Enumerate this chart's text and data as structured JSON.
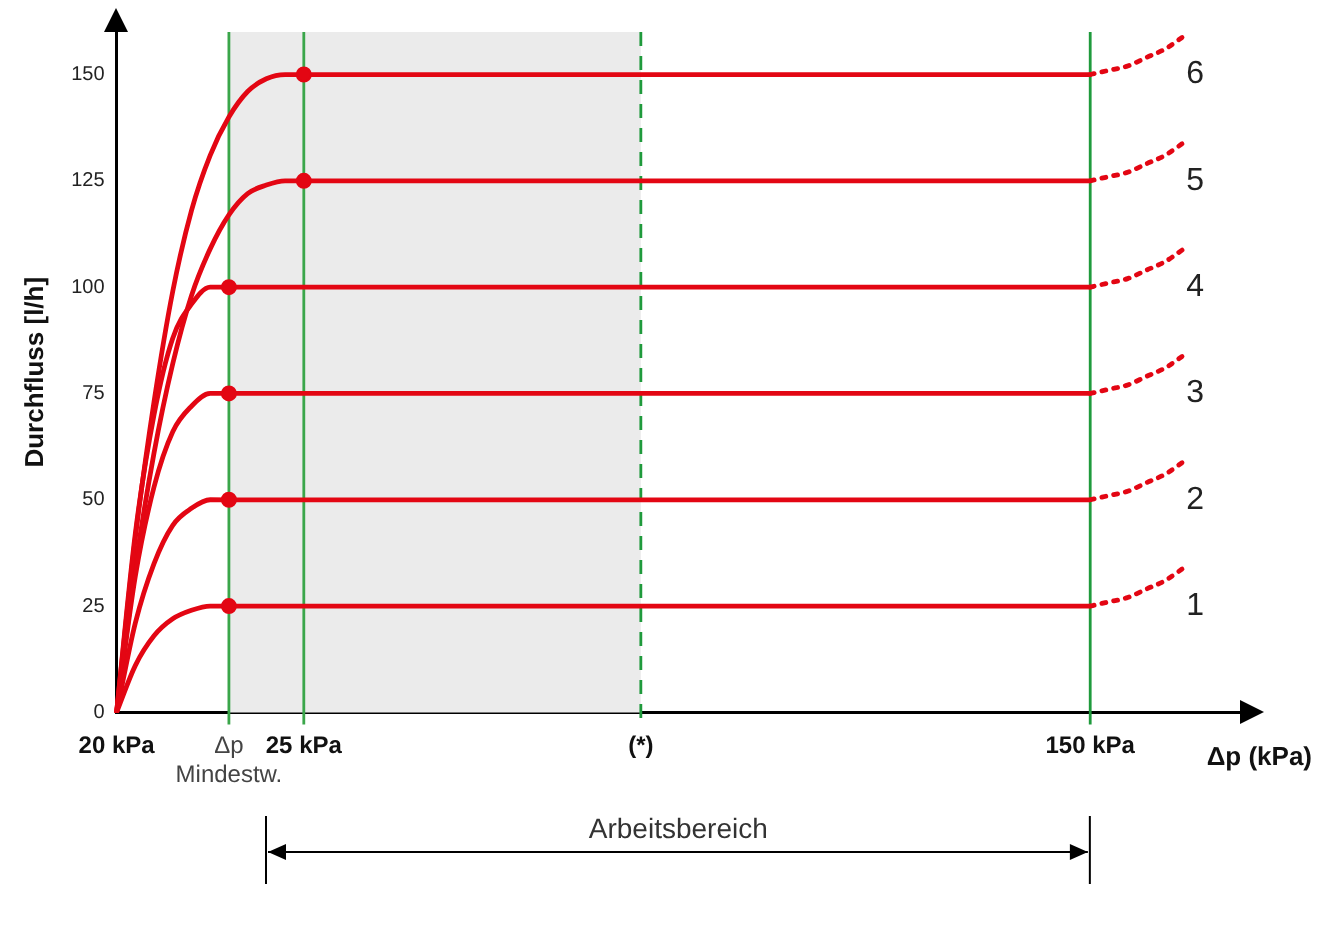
{
  "chart_data": {
    "type": "line",
    "ylabel": "Durchfluss [l/h]",
    "xlabel": "Δp (kPa)",
    "categories": [
      "20 kPa",
      null,
      null,
      null,
      null,
      null,
      "Δp\nMindestw.",
      null,
      null,
      null,
      "25 kPa",
      null,
      null,
      null,
      null,
      null,
      null,
      null,
      null,
      null,
      null,
      null,
      null,
      null,
      null,
      null,
      null,
      null,
      "(*)",
      null,
      null,
      null,
      null,
      null,
      null,
      null,
      null,
      null,
      null,
      null,
      null,
      null,
      null,
      null,
      null,
      null,
      null,
      null,
      null,
      null,
      null,
      null,
      "150 kPa",
      null,
      null,
      null,
      null,
      null,
      null,
      null,
      null
    ],
    "ylim": [
      0,
      160
    ],
    "yticks": [
      0,
      25,
      50,
      75,
      100,
      125,
      150
    ],
    "legend": false,
    "marker": "none",
    "line_style": "solid",
    "series": [
      {
        "name": "1",
        "color": "#e30613",
        "values": [
          0,
          11,
          18,
          22,
          24,
          25,
          25,
          25,
          25,
          25,
          25,
          25,
          25,
          25,
          25,
          25,
          25,
          25,
          25,
          25,
          25,
          25,
          25,
          25,
          25,
          25,
          25,
          25,
          25,
          25,
          25,
          25,
          25,
          25,
          25,
          25,
          25,
          25,
          25,
          25,
          25,
          25,
          25,
          25,
          25,
          25,
          25,
          25,
          25,
          25,
          25,
          25,
          25,
          null,
          null,
          null,
          null,
          null,
          null,
          null,
          null
        ]
      },
      {
        "name": "2",
        "color": "#e30613",
        "values": [
          0,
          21,
          35,
          44,
          48,
          50,
          50,
          50,
          50,
          50,
          50,
          50,
          50,
          50,
          50,
          50,
          50,
          50,
          50,
          50,
          50,
          50,
          50,
          50,
          50,
          50,
          50,
          50,
          50,
          50,
          50,
          50,
          50,
          50,
          50,
          50,
          50,
          50,
          50,
          50,
          50,
          50,
          50,
          50,
          50,
          50,
          50,
          50,
          50,
          50,
          50,
          50,
          50,
          null,
          null,
          null,
          null,
          null,
          null,
          null,
          null
        ]
      },
      {
        "name": "3",
        "color": "#e30613",
        "values": [
          0,
          32,
          53,
          66,
          72,
          75,
          75,
          75,
          75,
          75,
          75,
          75,
          75,
          75,
          75,
          75,
          75,
          75,
          75,
          75,
          75,
          75,
          75,
          75,
          75,
          75,
          75,
          75,
          75,
          75,
          75,
          75,
          75,
          75,
          75,
          75,
          75,
          75,
          75,
          75,
          75,
          75,
          75,
          75,
          75,
          75,
          75,
          75,
          75,
          75,
          75,
          75,
          75,
          null,
          null,
          null,
          null,
          null,
          null,
          null,
          null
        ]
      },
      {
        "name": "4",
        "color": "#e30613",
        "values": [
          0,
          42,
          70,
          88,
          96,
          100,
          100,
          100,
          100,
          100,
          100,
          100,
          100,
          100,
          100,
          100,
          100,
          100,
          100,
          100,
          100,
          100,
          100,
          100,
          100,
          100,
          100,
          100,
          100,
          100,
          100,
          100,
          100,
          100,
          100,
          100,
          100,
          100,
          100,
          100,
          100,
          100,
          100,
          100,
          100,
          100,
          100,
          100,
          100,
          100,
          100,
          100,
          100,
          null,
          null,
          null,
          null,
          null,
          null,
          null,
          null
        ]
      },
      {
        "name": "5",
        "color": "#e30613",
        "values": [
          0,
          34,
          61,
          82,
          98,
          109,
          117,
          122,
          124,
          125,
          125,
          125,
          125,
          125,
          125,
          125,
          125,
          125,
          125,
          125,
          125,
          125,
          125,
          125,
          125,
          125,
          125,
          125,
          125,
          125,
          125,
          125,
          125,
          125,
          125,
          125,
          125,
          125,
          125,
          125,
          125,
          125,
          125,
          125,
          125,
          125,
          125,
          125,
          125,
          125,
          125,
          125,
          125,
          null,
          null,
          null,
          null,
          null,
          null,
          null,
          null
        ]
      },
      {
        "name": "6",
        "color": "#e30613",
        "values": [
          0,
          41,
          73,
          99,
          118,
          131,
          140,
          146,
          149,
          150,
          150,
          150,
          150,
          150,
          150,
          150,
          150,
          150,
          150,
          150,
          150,
          150,
          150,
          150,
          150,
          150,
          150,
          150,
          150,
          150,
          150,
          150,
          150,
          150,
          150,
          150,
          150,
          150,
          150,
          150,
          150,
          150,
          150,
          150,
          150,
          150,
          150,
          150,
          150,
          150,
          150,
          150,
          150,
          null,
          null,
          null,
          null,
          null,
          null,
          null,
          null
        ]
      },
      {
        "color": "#e30613",
        "line_style": "dotted",
        "values": [
          null,
          null,
          null,
          null,
          null,
          null,
          null,
          null,
          null,
          null,
          null,
          null,
          null,
          null,
          null,
          null,
          null,
          null,
          null,
          null,
          null,
          null,
          null,
          null,
          null,
          null,
          null,
          null,
          null,
          null,
          null,
          null,
          null,
          null,
          null,
          null,
          null,
          null,
          null,
          null,
          null,
          null,
          null,
          null,
          null,
          null,
          null,
          null,
          null,
          null,
          null,
          null,
          25,
          26,
          27,
          29,
          31,
          34,
          null,
          null,
          null
        ]
      },
      {
        "color": "#e30613",
        "line_style": "dotted",
        "values": [
          null,
          null,
          null,
          null,
          null,
          null,
          null,
          null,
          null,
          null,
          null,
          null,
          null,
          null,
          null,
          null,
          null,
          null,
          null,
          null,
          null,
          null,
          null,
          null,
          null,
          null,
          null,
          null,
          null,
          null,
          null,
          null,
          null,
          null,
          null,
          null,
          null,
          null,
          null,
          null,
          null,
          null,
          null,
          null,
          null,
          null,
          null,
          null,
          null,
          null,
          null,
          null,
          50,
          51,
          52,
          54,
          56,
          59,
          null,
          null,
          null
        ]
      },
      {
        "color": "#e30613",
        "line_style": "dotted",
        "values": [
          null,
          null,
          null,
          null,
          null,
          null,
          null,
          null,
          null,
          null,
          null,
          null,
          null,
          null,
          null,
          null,
          null,
          null,
          null,
          null,
          null,
          null,
          null,
          null,
          null,
          null,
          null,
          null,
          null,
          null,
          null,
          null,
          null,
          null,
          null,
          null,
          null,
          null,
          null,
          null,
          null,
          null,
          null,
          null,
          null,
          null,
          null,
          null,
          null,
          null,
          null,
          null,
          75,
          76,
          77,
          79,
          81,
          84,
          null,
          null,
          null
        ]
      },
      {
        "color": "#e30613",
        "line_style": "dotted",
        "values": [
          null,
          null,
          null,
          null,
          null,
          null,
          null,
          null,
          null,
          null,
          null,
          null,
          null,
          null,
          null,
          null,
          null,
          null,
          null,
          null,
          null,
          null,
          null,
          null,
          null,
          null,
          null,
          null,
          null,
          null,
          null,
          null,
          null,
          null,
          null,
          null,
          null,
          null,
          null,
          null,
          null,
          null,
          null,
          null,
          null,
          null,
          null,
          null,
          null,
          null,
          null,
          null,
          100,
          101,
          102,
          104,
          106,
          109,
          null,
          null,
          null
        ]
      },
      {
        "color": "#e30613",
        "line_style": "dotted",
        "values": [
          null,
          null,
          null,
          null,
          null,
          null,
          null,
          null,
          null,
          null,
          null,
          null,
          null,
          null,
          null,
          null,
          null,
          null,
          null,
          null,
          null,
          null,
          null,
          null,
          null,
          null,
          null,
          null,
          null,
          null,
          null,
          null,
          null,
          null,
          null,
          null,
          null,
          null,
          null,
          null,
          null,
          null,
          null,
          null,
          null,
          null,
          null,
          null,
          null,
          null,
          null,
          null,
          125,
          126,
          127,
          129,
          131,
          134,
          null,
          null,
          null
        ]
      },
      {
        "color": "#e30613",
        "line_style": "dotted",
        "values": [
          null,
          null,
          null,
          null,
          null,
          null,
          null,
          null,
          null,
          null,
          null,
          null,
          null,
          null,
          null,
          null,
          null,
          null,
          null,
          null,
          null,
          null,
          null,
          null,
          null,
          null,
          null,
          null,
          null,
          null,
          null,
          null,
          null,
          null,
          null,
          null,
          null,
          null,
          null,
          null,
          null,
          null,
          null,
          null,
          null,
          null,
          null,
          null,
          null,
          null,
          null,
          null,
          150,
          151,
          152,
          154,
          156,
          159,
          null,
          null,
          null
        ]
      },
      {
        "type": "scatter",
        "marker": "circle",
        "color": "#e30613",
        "x": [
          "Δp\nMindestw.",
          "Δp\nMindestw.",
          "Δp\nMindestw.",
          "Δp\nMindestw.",
          "25 kPa",
          "25 kPa"
        ],
        "values": [
          25,
          50,
          75,
          100,
          125,
          150
        ]
      }
    ],
    "ref_lines": [
      {
        "axis": "x",
        "value": "Δp\nMindestw.",
        "color": "#3aa64a",
        "line_style": "solid"
      },
      {
        "axis": "x",
        "value": "25 kPa",
        "color": "#3aa64a",
        "line_style": "solid"
      },
      {
        "axis": "x",
        "value": "(*)",
        "color": "#1f9a3c",
        "line_style": "dashed"
      },
      {
        "axis": "x",
        "value": "150 kPa",
        "color": "#1f9a3c",
        "line_style": "solid"
      }
    ],
    "bands": [
      {
        "axis": "x",
        "from": "Δp\nMindestw.",
        "to": "(*)",
        "color": "#ebebeb"
      }
    ],
    "annotations": [
      "Arbeitsbereich"
    ]
  }
}
